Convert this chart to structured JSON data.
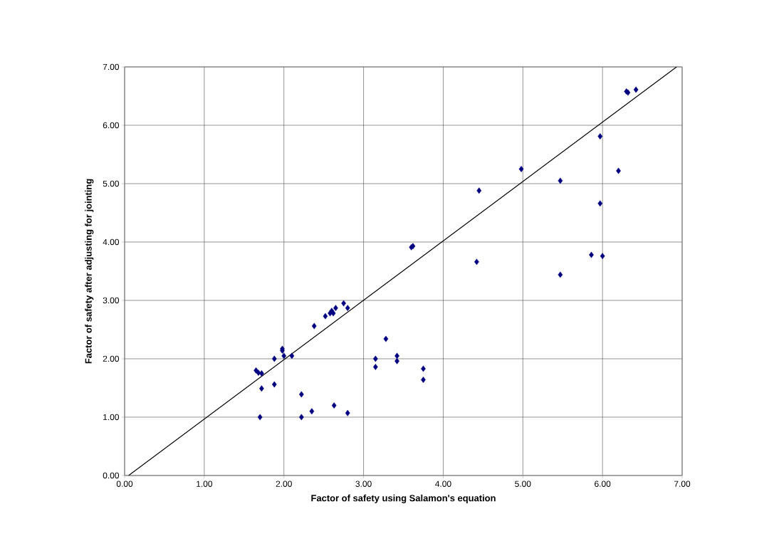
{
  "chart_data": {
    "type": "scatter",
    "xlabel": "Factor of safety using Salamon's equation",
    "ylabel": "Factor of safety after adjusting for jointing",
    "xlim": [
      0,
      7
    ],
    "ylim": [
      0,
      7
    ],
    "xticks": [
      {
        "value": 0,
        "label": "0.00"
      },
      {
        "value": 1,
        "label": "1.00"
      },
      {
        "value": 2,
        "label": "2.00"
      },
      {
        "value": 3,
        "label": "3.00"
      },
      {
        "value": 4,
        "label": "4.00"
      },
      {
        "value": 5,
        "label": "5.00"
      },
      {
        "value": 6,
        "label": "6.00"
      },
      {
        "value": 7,
        "label": "7.00"
      }
    ],
    "yticks": [
      {
        "value": 0,
        "label": "0.00"
      },
      {
        "value": 1,
        "label": "1.00"
      },
      {
        "value": 2,
        "label": "2.00"
      },
      {
        "value": 3,
        "label": "3.00"
      },
      {
        "value": 4,
        "label": "4.00"
      },
      {
        "value": 5,
        "label": "5.00"
      },
      {
        "value": 6,
        "label": "6.00"
      },
      {
        "value": 7,
        "label": "7.00"
      }
    ],
    "grid": true,
    "series": [
      {
        "color": "#000080",
        "marker": "diamond",
        "x": [
          1.65,
          1.68,
          1.72,
          1.72,
          1.7,
          1.88,
          1.88,
          1.98,
          1.98,
          2.0,
          2.1,
          2.22,
          2.22,
          2.35,
          2.38,
          2.52,
          2.58,
          2.6,
          2.62,
          2.65,
          2.75,
          2.8,
          2.63,
          2.8,
          3.15,
          3.15,
          3.28,
          3.42,
          3.42,
          3.75,
          3.75,
          3.62,
          3.6,
          4.42,
          4.45,
          4.98,
          5.47,
          5.47,
          5.86,
          5.97,
          5.97,
          6.0,
          6.2,
          6.3,
          6.32,
          6.42
        ],
        "values": [
          1.8,
          1.76,
          1.75,
          1.49,
          1.0,
          2.0,
          1.56,
          2.17,
          2.14,
          2.05,
          2.05,
          1.39,
          1.0,
          1.1,
          2.56,
          2.73,
          2.78,
          2.82,
          2.78,
          2.87,
          2.95,
          2.87,
          1.2,
          1.07,
          2.0,
          1.86,
          2.34,
          2.05,
          1.96,
          1.83,
          1.64,
          3.93,
          3.91,
          3.66,
          4.88,
          5.25,
          5.05,
          3.44,
          3.78,
          5.81,
          4.66,
          3.76,
          5.22,
          6.58,
          6.56,
          6.61
        ]
      },
      {
        "type": "line",
        "color": "#000000",
        "marker": "none",
        "line_style": "solid",
        "x": [
          0.05,
          6.93
        ],
        "values": [
          0,
          7.0
        ]
      }
    ]
  }
}
